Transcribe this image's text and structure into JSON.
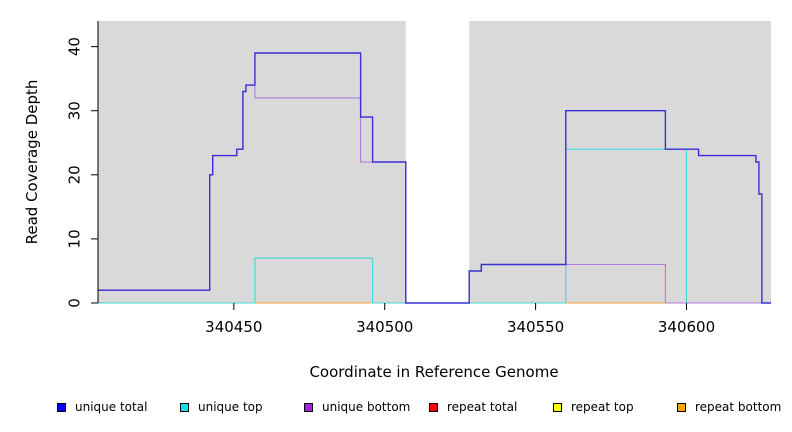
{
  "chart_data": {
    "type": "line",
    "xlabel": "Coordinate in Reference Genome",
    "ylabel": "Read Coverage Depth",
    "xlim": [
      340405,
      340628
    ],
    "ylim": [
      0,
      44
    ],
    "x_ticks": [
      340450,
      340500,
      340550,
      340600
    ],
    "y_ticks": [
      0,
      10,
      20,
      30,
      40
    ],
    "x_tick_labels": [
      "340450",
      "340500",
      "340550",
      "340600"
    ],
    "y_tick_labels": [
      "0",
      "10",
      "20",
      "30",
      "40"
    ],
    "plot_background": "#d9d9d9",
    "gap_region": [
      340507,
      340528
    ],
    "legend_position": "bottom",
    "series": [
      {
        "name": "unique total",
        "color": "#0000ff",
        "line_color": "#3a2fd6",
        "points": [
          [
            340405,
            2
          ],
          [
            340442,
            2
          ],
          [
            340442,
            20
          ],
          [
            340443,
            20
          ],
          [
            340443,
            23
          ],
          [
            340451,
            23
          ],
          [
            340451,
            24
          ],
          [
            340453,
            24
          ],
          [
            340453,
            33
          ],
          [
            340454,
            33
          ],
          [
            340454,
            34
          ],
          [
            340457,
            34
          ],
          [
            340457,
            39
          ],
          [
            340492,
            39
          ],
          [
            340492,
            29
          ],
          [
            340496,
            29
          ],
          [
            340496,
            22
          ],
          [
            340507,
            22
          ],
          [
            340507,
            0
          ],
          [
            340528,
            0
          ],
          [
            340528,
            5
          ],
          [
            340532,
            5
          ],
          [
            340532,
            6
          ],
          [
            340560,
            6
          ],
          [
            340560,
            30
          ],
          [
            340593,
            30
          ],
          [
            340593,
            24
          ],
          [
            340604,
            24
          ],
          [
            340604,
            23
          ],
          [
            340623,
            23
          ],
          [
            340623,
            22
          ],
          [
            340624,
            22
          ],
          [
            340624,
            17
          ],
          [
            340625,
            17
          ],
          [
            340625,
            0
          ],
          [
            340628,
            0
          ]
        ]
      },
      {
        "name": "unique top",
        "color": "#00e5e5",
        "line_color": "#40d8d8",
        "points": [
          [
            340405,
            0
          ],
          [
            340457,
            0
          ],
          [
            340457,
            7
          ],
          [
            340496,
            7
          ],
          [
            340496,
            0
          ],
          [
            340507,
            0
          ],
          [
            340528,
            0
          ],
          [
            340560,
            0
          ],
          [
            340560,
            24
          ],
          [
            340600,
            24
          ],
          [
            340600,
            0
          ],
          [
            340628,
            0
          ]
        ]
      },
      {
        "name": "unique bottom",
        "color": "#9c27e6",
        "line_color": "#b07ce0",
        "points": [
          [
            340405,
            2
          ],
          [
            340442,
            2
          ],
          [
            340442,
            20
          ],
          [
            340443,
            20
          ],
          [
            340443,
            23
          ],
          [
            340451,
            23
          ],
          [
            340451,
            24
          ],
          [
            340453,
            24
          ],
          [
            340453,
            33
          ],
          [
            340454,
            33
          ],
          [
            340454,
            34
          ],
          [
            340457,
            34
          ],
          [
            340457,
            32
          ],
          [
            340492,
            32
          ],
          [
            340492,
            22
          ],
          [
            340507,
            22
          ],
          [
            340507,
            0
          ],
          [
            340528,
            0
          ],
          [
            340528,
            5
          ],
          [
            340532,
            5
          ],
          [
            340532,
            6
          ],
          [
            340593,
            6
          ],
          [
            340593,
            0
          ],
          [
            340628,
            0
          ]
        ]
      },
      {
        "name": "repeat total",
        "color": "#ff0000",
        "line_color": "#e03030",
        "points": [
          [
            340593,
            0
          ],
          [
            340625,
            0
          ]
        ]
      },
      {
        "name": "repeat top",
        "color": "#ffff00",
        "line_color": "#e8e800",
        "points": []
      },
      {
        "name": "repeat bottom",
        "color": "#ffa500",
        "line_color": "#f0a030",
        "points": [
          [
            340457,
            0
          ],
          [
            340496,
            0
          ],
          [
            340560,
            0
          ],
          [
            340593,
            0
          ]
        ]
      }
    ]
  }
}
